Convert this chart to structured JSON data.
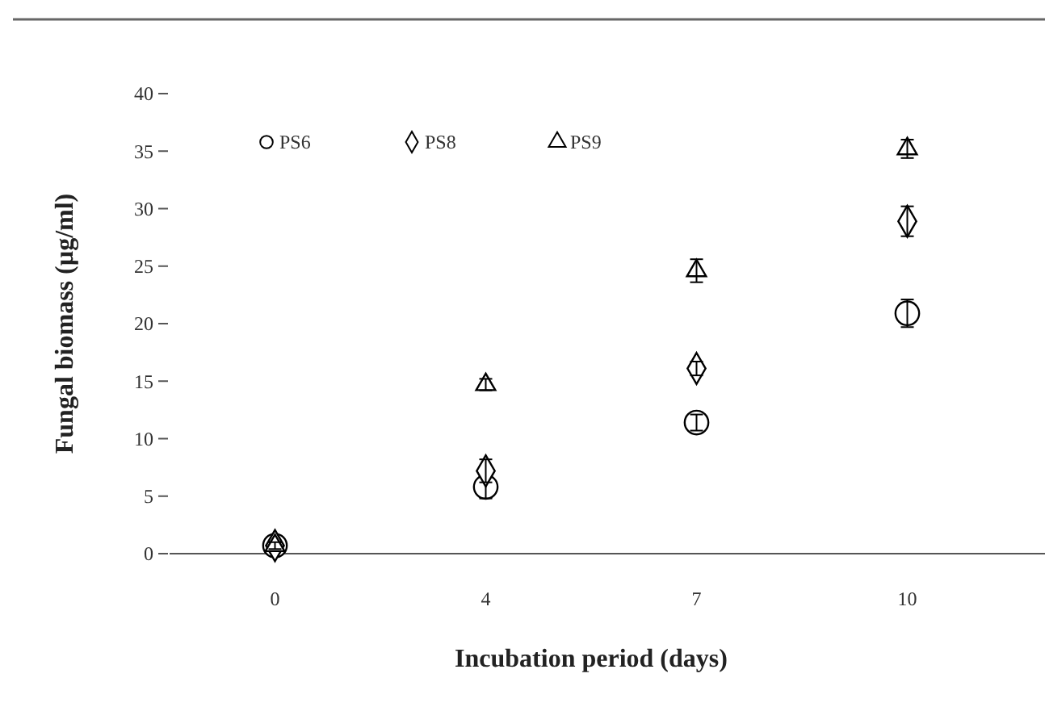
{
  "chart_data": {
    "type": "scatter",
    "xlabel": "Incubation period (days)",
    "ylabel": "Fungal biomass (µg/ml)",
    "categories": [
      "0",
      "4",
      "7",
      "10"
    ],
    "series": [
      {
        "name": "PS6",
        "color": "#000000",
        "marker": "circle",
        "values": [
          0.7,
          5.8,
          11.4,
          20.9
        ],
        "errors": [
          0.3,
          1,
          0.7,
          1.2
        ]
      },
      {
        "name": "PS8",
        "color": "#000000",
        "marker": "diamond",
        "values": [
          0.7,
          7.2,
          16.1,
          28.9
        ],
        "errors": [
          0.3,
          1,
          0.6,
          1.3
        ]
      },
      {
        "name": "PS9",
        "color": "#000000",
        "marker": "triangle",
        "values": [
          0.7,
          14.7,
          24.6,
          35.2
        ],
        "errors": [
          0.3,
          0.5,
          1,
          0.8
        ]
      }
    ],
    "ylim": [
      0,
      40
    ],
    "yticks": [
      0,
      5,
      10,
      15,
      20,
      25,
      30,
      35,
      40
    ],
    "grid": false,
    "legend": "top left"
  }
}
